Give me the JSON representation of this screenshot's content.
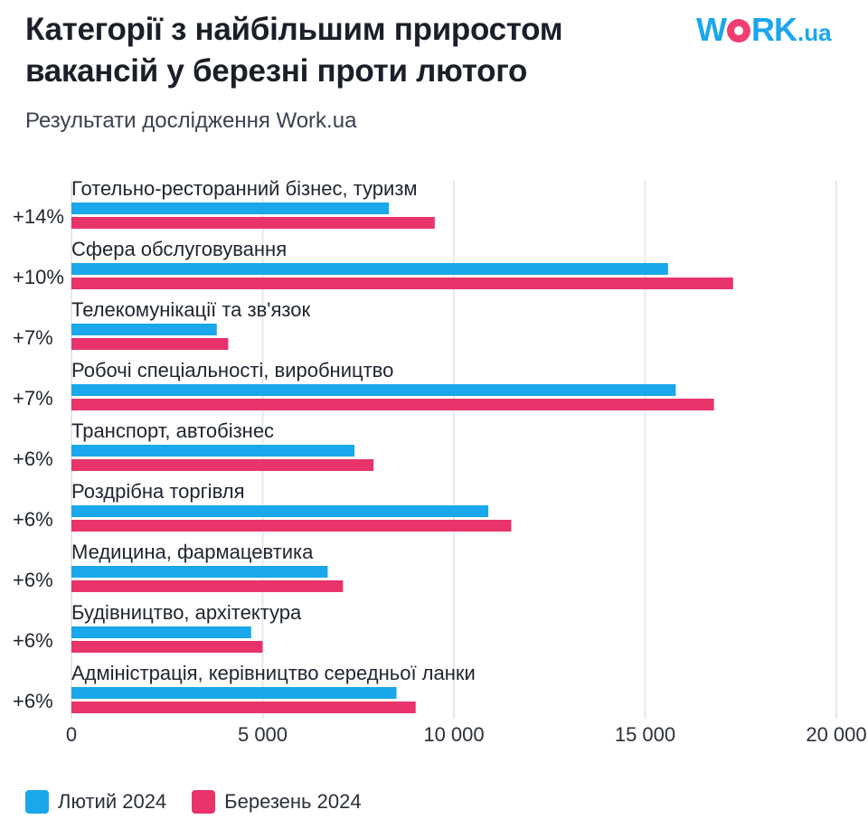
{
  "header": {
    "title_line1": "Категорії з найбільшим приростом",
    "title_line2": "вакансій у березні проти лютого",
    "subtitle": "Результати дослідження Work.ua"
  },
  "logo": {
    "part1": "W",
    "part2": "RK",
    "suffix": ".ua"
  },
  "colors": {
    "feb": "#1aa7ec",
    "mar": "#e8336b",
    "grid": "#e6e8ee",
    "logo_dot": "#ef3e71"
  },
  "legend": {
    "feb": "Лютий 2024",
    "mar": "Березень 2024"
  },
  "chart_data": {
    "type": "bar",
    "orientation": "horizontal",
    "categories": [
      "Готельно-ресторанний бізнес, туризм",
      "Сфера обслуговування",
      "Телекомунікації та зв'язок",
      "Робочі спеціальності, виробництво",
      "Транспорт, автобізнес",
      "Роздрібна торгівля",
      "Медицина, фармацевтика",
      "Будівництво, архітектура",
      "Адміністрація, керівництво середньої ланки"
    ],
    "growth_labels": [
      "+14%",
      "+10%",
      "+7%",
      "+7%",
      "+6%",
      "+6%",
      "+6%",
      "+6%",
      "+6%"
    ],
    "series": [
      {
        "name": "Лютий 2024",
        "values": [
          8300,
          15600,
          3800,
          15800,
          7400,
          10900,
          6700,
          4700,
          8500
        ]
      },
      {
        "name": "Березень 2024",
        "values": [
          9500,
          17300,
          4100,
          16800,
          7900,
          11500,
          7100,
          5000,
          9000
        ]
      }
    ],
    "xlim": [
      0,
      20000
    ],
    "x_ticks": [
      0,
      5000,
      10000,
      15000,
      20000
    ],
    "x_tick_labels": [
      "0",
      "5 000",
      "10 000",
      "15 000",
      "20 000"
    ],
    "grid": true,
    "legend_position": "bottom-left"
  }
}
